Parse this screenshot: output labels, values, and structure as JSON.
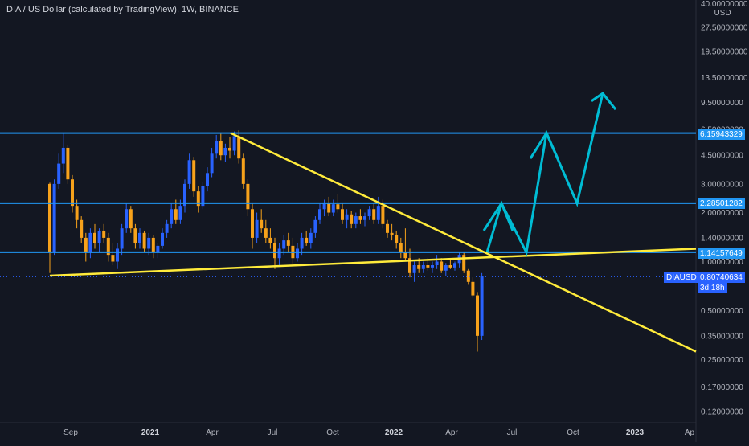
{
  "header": {
    "title": "DIA / US Dollar (calculated by TradingView), 1W, BINANCE"
  },
  "axis": {
    "currency": "USD",
    "price_ticks": [
      "40.00000000",
      "27.50000000",
      "19.50000000",
      "13.50000000",
      "9.50000000",
      "6.50000000",
      "4.50000000",
      "3.00000000",
      "2.00000000",
      "1.40000000",
      "1.00000000",
      "0.50000000",
      "0.35000000",
      "0.25000000",
      "0.17000000",
      "0.12000000"
    ],
    "time_ticks": [
      {
        "label": "Sep",
        "bold": false
      },
      {
        "label": "2021",
        "bold": true
      },
      {
        "label": "Apr",
        "bold": false
      },
      {
        "label": "Jul",
        "bold": false
      },
      {
        "label": "Oct",
        "bold": false
      },
      {
        "label": "2022",
        "bold": true
      },
      {
        "label": "Apr",
        "bold": false
      },
      {
        "label": "Jul",
        "bold": false
      },
      {
        "label": "Oct",
        "bold": false
      },
      {
        "label": "2023",
        "bold": true
      },
      {
        "label": "Ap",
        "bold": false
      }
    ]
  },
  "price_tags": {
    "level_1": "6.15943329",
    "level_2": "2.28501282",
    "level_3": "1.14157649",
    "symbol": "DIAUSD",
    "last_price": "0.80740634",
    "countdown": "3d 18h"
  },
  "colors": {
    "background": "#131722",
    "up": "#2962ff",
    "down": "#f7a21b",
    "level": "#2196f3",
    "trendline": "#ffeb3b",
    "projection": "#00bcd4"
  },
  "chart_data": {
    "type": "candlestick",
    "symbol": "DIAUSD",
    "interval": "1W",
    "exchange": "BINANCE",
    "horizontal_levels": [
      6.15943329,
      2.28501282,
      1.14157649
    ],
    "last_price": 0.80740634,
    "candles": [
      [
        3.0,
        3.05,
        0.85,
        1.15
      ],
      [
        1.15,
        3.2,
        1.1,
        3.0
      ],
      [
        3.0,
        4.6,
        2.8,
        4.0
      ],
      [
        4.0,
        6.2,
        3.5,
        5.0
      ],
      [
        5.0,
        5.2,
        3.0,
        3.2
      ],
      [
        3.2,
        3.4,
        2.0,
        2.2
      ],
      [
        2.2,
        2.4,
        1.6,
        1.8
      ],
      [
        1.8,
        1.9,
        1.3,
        1.4
      ],
      [
        1.4,
        1.5,
        1.0,
        1.15
      ],
      [
        1.15,
        1.6,
        1.05,
        1.5
      ],
      [
        1.5,
        1.7,
        1.2,
        1.3
      ],
      [
        1.3,
        1.6,
        1.15,
        1.55
      ],
      [
        1.55,
        1.7,
        1.3,
        1.4
      ],
      [
        1.4,
        1.5,
        1.0,
        1.1
      ],
      [
        1.1,
        1.3,
        0.95,
        1.0
      ],
      [
        1.0,
        1.3,
        0.9,
        1.2
      ],
      [
        1.2,
        1.7,
        1.1,
        1.6
      ],
      [
        1.6,
        2.3,
        1.5,
        2.1
      ],
      [
        2.1,
        2.2,
        1.5,
        1.6
      ],
      [
        1.6,
        1.7,
        1.2,
        1.3
      ],
      [
        1.3,
        1.6,
        1.2,
        1.5
      ],
      [
        1.5,
        1.55,
        1.15,
        1.2
      ],
      [
        1.2,
        1.5,
        1.1,
        1.4
      ],
      [
        1.4,
        1.45,
        1.05,
        1.15
      ],
      [
        1.15,
        1.3,
        1.05,
        1.25
      ],
      [
        1.25,
        1.6,
        1.2,
        1.5
      ],
      [
        1.5,
        1.8,
        1.4,
        1.7
      ],
      [
        1.7,
        2.3,
        1.6,
        2.1
      ],
      [
        2.1,
        2.4,
        1.7,
        1.8
      ],
      [
        1.8,
        2.4,
        1.7,
        2.2
      ],
      [
        2.2,
        3.2,
        2.0,
        3.0
      ],
      [
        3.0,
        4.6,
        2.8,
        4.2
      ],
      [
        4.2,
        4.4,
        2.5,
        2.7
      ],
      [
        2.7,
        2.9,
        2.0,
        2.2
      ],
      [
        2.2,
        3.1,
        2.1,
        2.9
      ],
      [
        2.9,
        3.8,
        2.7,
        3.5
      ],
      [
        3.5,
        5.0,
        3.3,
        4.6
      ],
      [
        4.6,
        6.0,
        4.3,
        5.5
      ],
      [
        5.5,
        6.1,
        4.2,
        4.5
      ],
      [
        4.5,
        5.3,
        4.1,
        5.0
      ],
      [
        5.0,
        5.8,
        4.3,
        4.8
      ],
      [
        4.8,
        6.3,
        4.5,
        5.9
      ],
      [
        5.9,
        6.4,
        4.0,
        4.3
      ],
      [
        4.3,
        4.6,
        2.8,
        3.0
      ],
      [
        3.0,
        3.2,
        1.9,
        2.1
      ],
      [
        2.1,
        2.3,
        1.2,
        1.4
      ],
      [
        1.4,
        2.0,
        1.3,
        1.8
      ],
      [
        1.8,
        2.1,
        1.5,
        1.6
      ],
      [
        1.6,
        1.8,
        1.3,
        1.4
      ],
      [
        1.4,
        1.6,
        1.2,
        1.3
      ],
      [
        1.3,
        1.4,
        0.9,
        1.05
      ],
      [
        1.05,
        1.3,
        0.95,
        1.2
      ],
      [
        1.2,
        1.45,
        1.1,
        1.35
      ],
      [
        1.35,
        1.5,
        1.15,
        1.25
      ],
      [
        1.25,
        1.4,
        0.95,
        1.05
      ],
      [
        1.05,
        1.3,
        1.0,
        1.2
      ],
      [
        1.2,
        1.5,
        1.1,
        1.4
      ],
      [
        1.4,
        1.55,
        1.25,
        1.3
      ],
      [
        1.3,
        1.6,
        1.2,
        1.5
      ],
      [
        1.5,
        1.9,
        1.4,
        1.8
      ],
      [
        1.8,
        2.3,
        1.7,
        2.1
      ],
      [
        2.1,
        2.4,
        1.9,
        2.3
      ],
      [
        2.3,
        2.5,
        1.9,
        2.0
      ],
      [
        2.0,
        2.4,
        1.9,
        2.25
      ],
      [
        2.25,
        2.6,
        2.0,
        2.1
      ],
      [
        2.1,
        2.3,
        1.7,
        1.8
      ],
      [
        1.8,
        2.1,
        1.6,
        1.95
      ],
      [
        1.95,
        2.05,
        1.6,
        1.7
      ],
      [
        1.7,
        2.0,
        1.6,
        1.9
      ],
      [
        1.9,
        2.1,
        1.7,
        1.8
      ],
      [
        1.8,
        2.0,
        1.65,
        1.9
      ],
      [
        1.9,
        2.2,
        1.8,
        2.1
      ],
      [
        2.1,
        2.3,
        1.7,
        1.8
      ],
      [
        1.8,
        2.5,
        1.7,
        2.2
      ],
      [
        2.2,
        2.4,
        1.6,
        1.7
      ],
      [
        1.7,
        1.8,
        1.4,
        1.5
      ],
      [
        1.5,
        1.7,
        1.35,
        1.45
      ],
      [
        1.45,
        1.55,
        1.2,
        1.3
      ],
      [
        1.3,
        1.4,
        1.05,
        1.15
      ],
      [
        1.15,
        1.6,
        1.0,
        1.05
      ],
      [
        1.05,
        1.2,
        0.8,
        0.85
      ],
      [
        0.85,
        1.0,
        0.75,
        0.95
      ],
      [
        0.95,
        1.05,
        0.85,
        0.9
      ],
      [
        0.9,
        1.0,
        0.85,
        0.95
      ],
      [
        0.95,
        1.05,
        0.88,
        0.92
      ],
      [
        0.92,
        1.0,
        0.85,
        0.95
      ],
      [
        0.95,
        1.1,
        0.9,
        1.0
      ],
      [
        1.0,
        1.05,
        0.85,
        0.88
      ],
      [
        0.88,
        0.98,
        0.82,
        0.95
      ],
      [
        0.95,
        1.05,
        0.9,
        0.92
      ],
      [
        0.92,
        1.0,
        0.88,
        0.98
      ],
      [
        0.98,
        1.15,
        0.92,
        1.1
      ],
      [
        1.1,
        1.15,
        0.85,
        0.88
      ],
      [
        0.88,
        0.9,
        0.72,
        0.75
      ],
      [
        0.75,
        0.8,
        0.6,
        0.62
      ],
      [
        0.62,
        0.65,
        0.28,
        0.35
      ],
      [
        0.35,
        0.85,
        0.33,
        0.81
      ]
    ],
    "trendlines": [
      {
        "name": "descending",
        "points": [
          [
            6.15943329,
            6.15943329
          ],
          [
            0.28,
            0.28
          ]
        ]
      },
      {
        "name": "ascending",
        "points": [
          [
            0.82,
            0.82
          ],
          [
            1.2,
            1.2
          ]
        ]
      }
    ]
  }
}
